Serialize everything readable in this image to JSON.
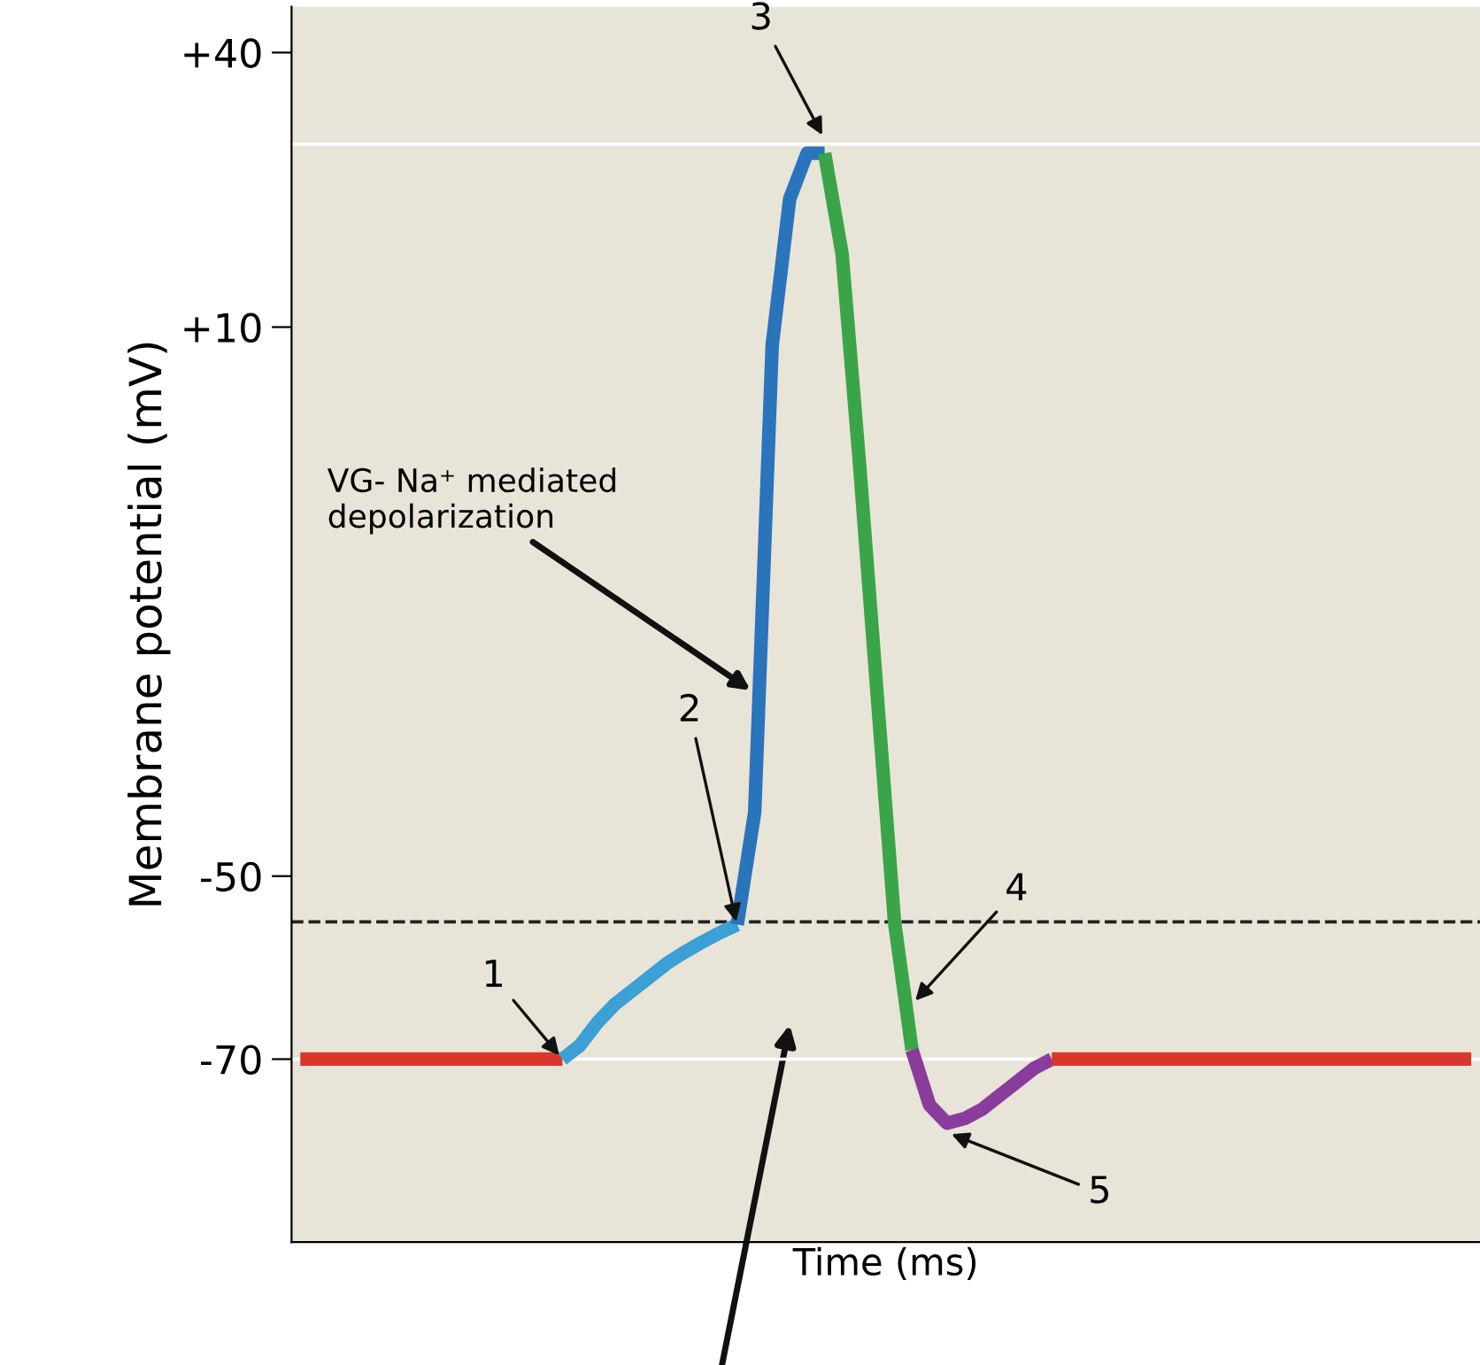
{
  "chart_data": {
    "type": "line",
    "xlabel": "Time (ms)",
    "ylabel": "Membrane potential (mV)",
    "categories": [
      null,
      null,
      null,
      null,
      null,
      null,
      null,
      null,
      null,
      null,
      null,
      null,
      null,
      null,
      null,
      null,
      null,
      null,
      null,
      null,
      null,
      null,
      null,
      null,
      null,
      null,
      null,
      null,
      null,
      null,
      null,
      null,
      null,
      null,
      null,
      null,
      null,
      null,
      null,
      null,
      null,
      null,
      null,
      null,
      null,
      null,
      null,
      null,
      null,
      null,
      null,
      null,
      null,
      null,
      null,
      null,
      null,
      null,
      null,
      null,
      null,
      null,
      null,
      null,
      null,
      null,
      null,
      null
    ],
    "series": [
      {
        "color": "#d9372b",
        "values": [
          -70,
          -70,
          -70,
          -70,
          -70,
          -70,
          -70,
          -70,
          -70,
          -70,
          -70,
          -70,
          -70,
          -70,
          -70,
          -70,
          null,
          null,
          null,
          null,
          null,
          null,
          null,
          null,
          null,
          null,
          null,
          null,
          null,
          null,
          null,
          null,
          null,
          null,
          null,
          null,
          null,
          null,
          null,
          null,
          null,
          null,
          null,
          null,
          null,
          null,
          null,
          null,
          null,
          null,
          null,
          null,
          null,
          null,
          null,
          null,
          null,
          null,
          null,
          null,
          null,
          null,
          null,
          null,
          null,
          null,
          null,
          null
        ]
      },
      {
        "color": "#3aa0d5",
        "values": [
          null,
          null,
          null,
          null,
          null,
          null,
          null,
          null,
          null,
          null,
          null,
          null,
          null,
          null,
          null,
          -70,
          -68.5,
          -66,
          -64,
          -62.5,
          -61,
          -59.5,
          -58.3,
          -57.2,
          -56.2,
          -55.3,
          null,
          null,
          null,
          null,
          null,
          null,
          null,
          null,
          null,
          null,
          null,
          null,
          null,
          null,
          null,
          null,
          null,
          null,
          null,
          null,
          null,
          null,
          null,
          null,
          null,
          null,
          null,
          null,
          null,
          null,
          null,
          null,
          null,
          null,
          null,
          null,
          null,
          null,
          null,
          null,
          null,
          null
        ]
      },
      {
        "color": "#2a74bb",
        "values": [
          null,
          null,
          null,
          null,
          null,
          null,
          null,
          null,
          null,
          null,
          null,
          null,
          null,
          null,
          null,
          null,
          null,
          null,
          null,
          null,
          null,
          null,
          null,
          null,
          null,
          -55.3,
          -43,
          8,
          24,
          29,
          29,
          null,
          null,
          null,
          null,
          null,
          null,
          null,
          null,
          null,
          null,
          null,
          null,
          null,
          null,
          null,
          null,
          null,
          null,
          null,
          null,
          null,
          null,
          null,
          null,
          null,
          null,
          null,
          null,
          null,
          null,
          null,
          null,
          null,
          null,
          null,
          null,
          null
        ]
      },
      {
        "color": "#3aa548",
        "values": [
          null,
          null,
          null,
          null,
          null,
          null,
          null,
          null,
          null,
          null,
          null,
          null,
          null,
          null,
          null,
          null,
          null,
          null,
          null,
          null,
          null,
          null,
          null,
          null,
          null,
          null,
          null,
          null,
          null,
          null,
          29,
          18,
          -5,
          -30,
          -55,
          -69,
          null,
          null,
          null,
          null,
          null,
          null,
          null,
          null,
          null,
          null,
          null,
          null,
          null,
          null,
          null,
          null,
          null,
          null,
          null,
          null,
          null,
          null,
          null,
          null,
          null,
          null,
          null,
          null,
          null,
          null,
          null,
          null
        ]
      },
      {
        "color": "#8a3c9c",
        "values": [
          null,
          null,
          null,
          null,
          null,
          null,
          null,
          null,
          null,
          null,
          null,
          null,
          null,
          null,
          null,
          null,
          null,
          null,
          null,
          null,
          null,
          null,
          null,
          null,
          null,
          null,
          null,
          null,
          null,
          null,
          null,
          null,
          null,
          null,
          null,
          -69,
          -75,
          -77,
          -76.5,
          -75.5,
          -74,
          -72.5,
          -71,
          -70,
          null,
          null,
          null,
          null,
          null,
          null,
          null,
          null,
          null,
          null,
          null,
          null,
          null,
          null,
          null,
          null,
          null,
          null,
          null,
          null,
          null,
          null,
          null,
          null
        ]
      },
      {
        "color": "#d9372b",
        "values": [
          null,
          null,
          null,
          null,
          null,
          null,
          null,
          null,
          null,
          null,
          null,
          null,
          null,
          null,
          null,
          null,
          null,
          null,
          null,
          null,
          null,
          null,
          null,
          null,
          null,
          null,
          null,
          null,
          null,
          null,
          null,
          null,
          null,
          null,
          null,
          null,
          null,
          null,
          null,
          null,
          null,
          null,
          null,
          -70,
          -70,
          -70,
          -70,
          -70,
          -70,
          -70,
          -70,
          -70,
          -70,
          -70,
          -70,
          -70,
          -70,
          -70,
          -70,
          -70,
          -70,
          -70,
          -70,
          -70,
          -70,
          -70,
          -70,
          -70
        ]
      }
    ],
    "ylim": [
      -90,
      45
    ],
    "yticks": [
      {
        "value": 40,
        "label": "+40"
      },
      {
        "value": 10,
        "label": "+10"
      },
      -50,
      -70
    ],
    "tick_labels": "y",
    "ref_lines": [
      {
        "axis": "y",
        "value": -55,
        "color": "#222222",
        "line_style": "dashed"
      },
      {
        "axis": "y",
        "value": 30,
        "color": "#ffffff"
      },
      {
        "axis": "y",
        "value": -70,
        "color": "#ffffff"
      }
    ],
    "annotations": [
      "1",
      "2",
      "3",
      "4",
      "5",
      "VG- Na⁺ mediated depolarization"
    ]
  }
}
